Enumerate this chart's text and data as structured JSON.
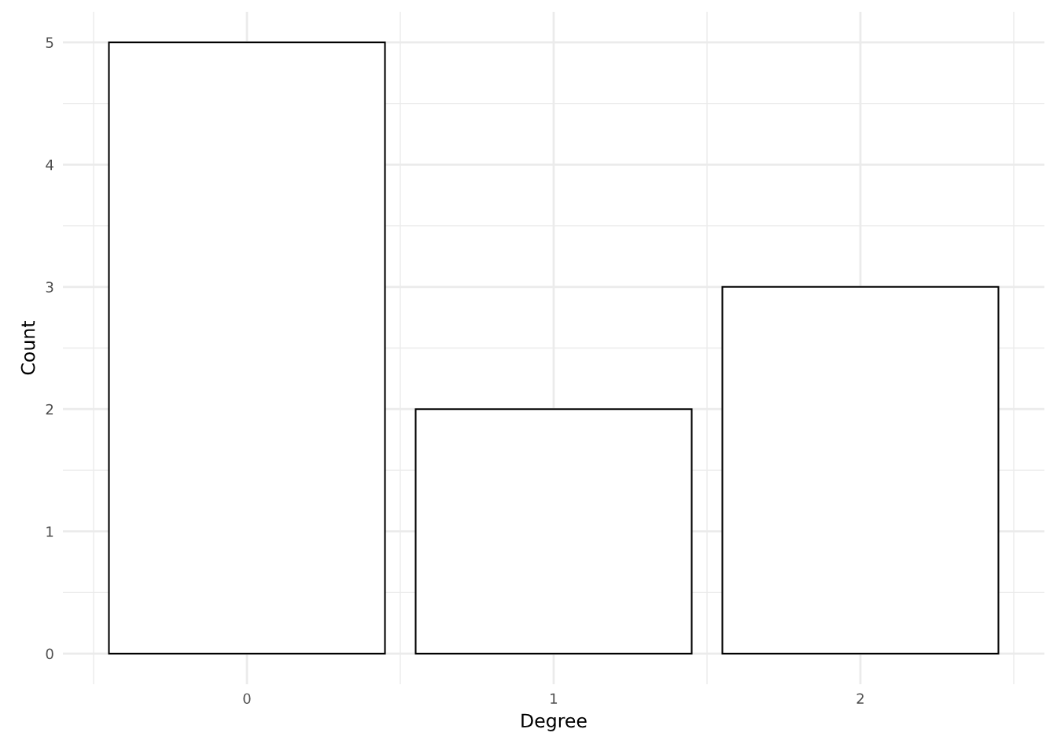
{
  "chart_data": {
    "type": "bar",
    "xlabel": "Degree",
    "ylabel": "Count",
    "categories": [
      "0",
      "1",
      "2"
    ],
    "series": [
      {
        "color": "#ffffff",
        "values": [
          5,
          2,
          3
        ]
      }
    ],
    "ylim": [
      -0.25,
      5.25
    ],
    "yticks": [
      0,
      1,
      2,
      3,
      4,
      5
    ],
    "grid": true
  }
}
